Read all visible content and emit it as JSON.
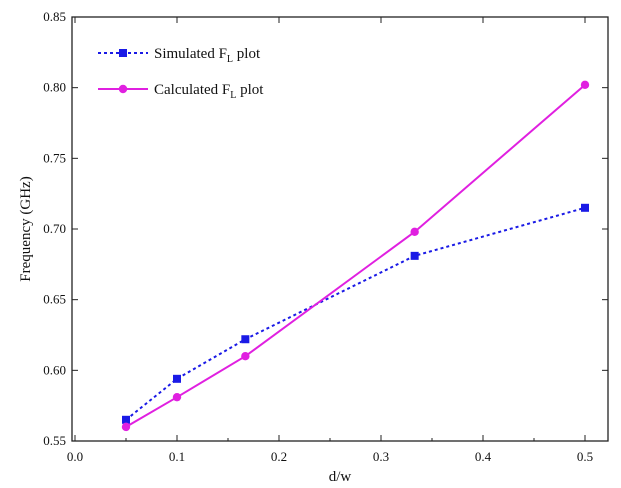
{
  "chart_data": {
    "type": "line",
    "xlabel": "d/w",
    "ylabel": "Frequency (GHz)",
    "xlim": [
      0.0,
      0.5
    ],
    "ylim": [
      0.55,
      0.85
    ],
    "xticks": [
      "0.0",
      "0.1",
      "0.2",
      "0.3",
      "0.4",
      "0.5"
    ],
    "yticks": [
      "0.55",
      "0.60",
      "0.65",
      "0.70",
      "0.75",
      "0.80",
      "0.85"
    ],
    "grid": false,
    "legend_position": "top-left",
    "series": [
      {
        "name": "Simulated F",
        "name_sub": "L",
        "name_suffix": " plot",
        "line_style": "dotted",
        "marker": "square",
        "color": "#1a1ae6",
        "x": [
          0.05,
          0.1,
          0.167,
          0.333,
          0.5
        ],
        "y": [
          0.565,
          0.594,
          0.622,
          0.681,
          0.715
        ]
      },
      {
        "name": "Calculated F",
        "name_sub": "L",
        "name_suffix": " plot",
        "line_style": "solid",
        "marker": "circle",
        "color": "#e020e0",
        "x": [
          0.05,
          0.1,
          0.167,
          0.333,
          0.5
        ],
        "y": [
          0.56,
          0.581,
          0.61,
          0.698,
          0.802
        ]
      }
    ]
  }
}
